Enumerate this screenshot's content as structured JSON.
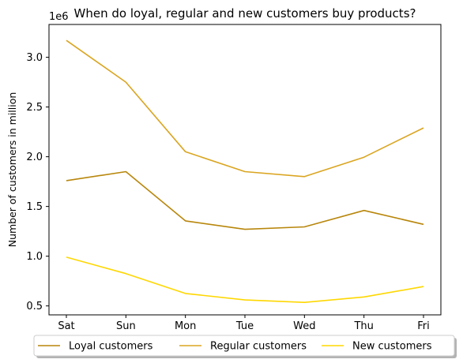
{
  "chart_data": {
    "type": "line",
    "title": "When do loyal, regular and new customers buy products?",
    "xlabel": "",
    "ylabel": "Number of customers in million",
    "scale_text": "1e6",
    "categories": [
      "Sat",
      "Sun",
      "Mon",
      "Tue",
      "Wed",
      "Thu",
      "Fri"
    ],
    "y_ticks": [
      "0.5",
      "1.0",
      "1.5",
      "2.0",
      "2.5",
      "3.0"
    ],
    "ylim": [
      410000,
      3330000
    ],
    "grid": false,
    "legend_placement": "bottom-center",
    "series": [
      {
        "name": "Loyal customers",
        "color": "#b8860b",
        "values": [
          1760000,
          1850000,
          1355000,
          1270000,
          1295000,
          1460000,
          1320000
        ]
      },
      {
        "name": "Regular customers",
        "color": "#daa520",
        "values": [
          3170000,
          2750000,
          2050000,
          1850000,
          1800000,
          1995000,
          2290000
        ]
      },
      {
        "name": "New customers",
        "color": "#ffd700",
        "values": [
          990000,
          825000,
          625000,
          560000,
          535000,
          590000,
          695000
        ]
      }
    ]
  }
}
